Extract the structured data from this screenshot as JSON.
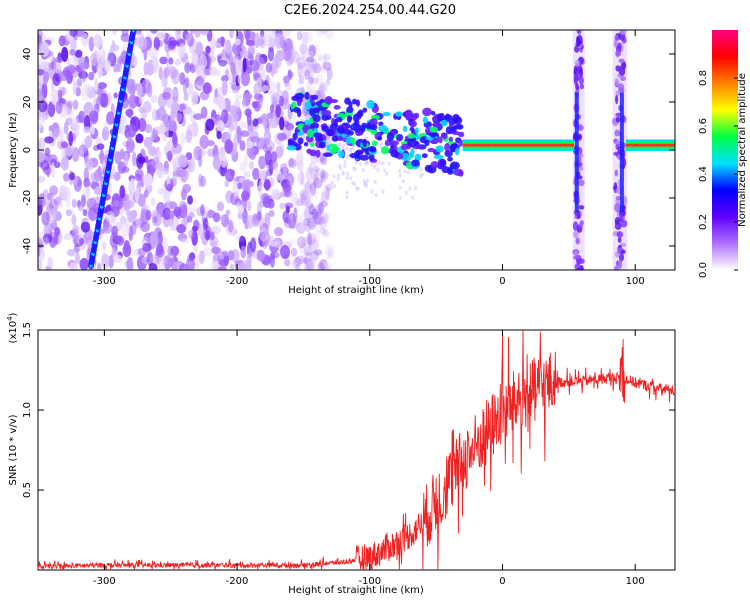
{
  "title": "C2E6.2024.254.00.44.G20",
  "chart_data": [
    {
      "type": "heatmap",
      "title": "C2E6.2024.254.00.44.G20",
      "xlabel": "Height of straight line (km)",
      "ylabel": "Frequency (Hz)",
      "xlim": [
        -350,
        130
      ],
      "ylim": [
        -50,
        50
      ],
      "x_ticks": [
        -300,
        -200,
        -100,
        0,
        100
      ],
      "y_ticks": [
        -40,
        -20,
        0,
        20,
        40
      ],
      "colorbar": {
        "label": "Normalized spectral amplitude",
        "range": [
          0.0,
          1.0
        ],
        "ticks": [
          0.0,
          0.2,
          0.4,
          0.6,
          0.8
        ],
        "colormap": [
          "#ffffff",
          "#b070ff",
          "#6000ff",
          "#0000ff",
          "#00e0ff",
          "#00ff40",
          "#ffff00",
          "#ff8000",
          "#ff0000",
          "#ff0080"
        ]
      },
      "features": {
        "diagonal_streak": {
          "from": [
            -310,
            -48
          ],
          "to": [
            -278,
            50
          ]
        },
        "noise_band_x": [
          -350,
          -130
        ],
        "echo_cluster_x": [
          -160,
          -30
        ],
        "strong_trace": {
          "x": [
            -30,
            130
          ],
          "frequency": 2
        },
        "vertical_bands": [
          [
            55,
            60
          ],
          [
            85,
            92
          ]
        ]
      }
    },
    {
      "type": "line",
      "xlabel": "Height of straight line (km)",
      "ylabel": "SNR (10 * v/v)",
      "y_multiplier": "(x10",
      "y_multiplier_exp": "4",
      "xlim": [
        -350,
        130
      ],
      "ylim": [
        0,
        1.5
      ],
      "x_ticks": [
        -300,
        -200,
        -100,
        0,
        100
      ],
      "y_ticks": [
        0.5,
        1.0,
        1.5
      ],
      "series_color": "#ee2222",
      "series": [
        {
          "x": [
            -350,
            -300,
            -250,
            -200,
            -150,
            -120,
            -100,
            -90,
            -80,
            -70,
            -60,
            -50,
            -40,
            -30,
            -20,
            -10,
            0,
            10,
            20,
            30,
            40,
            50,
            60,
            70,
            80,
            90,
            100,
            110,
            120,
            130
          ],
          "values": [
            0.02,
            0.03,
            0.03,
            0.03,
            0.03,
            0.05,
            0.08,
            0.12,
            0.17,
            0.22,
            0.3,
            0.42,
            0.55,
            0.68,
            0.78,
            0.88,
            0.98,
            1.05,
            1.1,
            1.15,
            1.17,
            1.18,
            1.18,
            1.19,
            1.2,
            1.2,
            1.17,
            1.15,
            1.13,
            1.12
          ]
        }
      ]
    }
  ]
}
